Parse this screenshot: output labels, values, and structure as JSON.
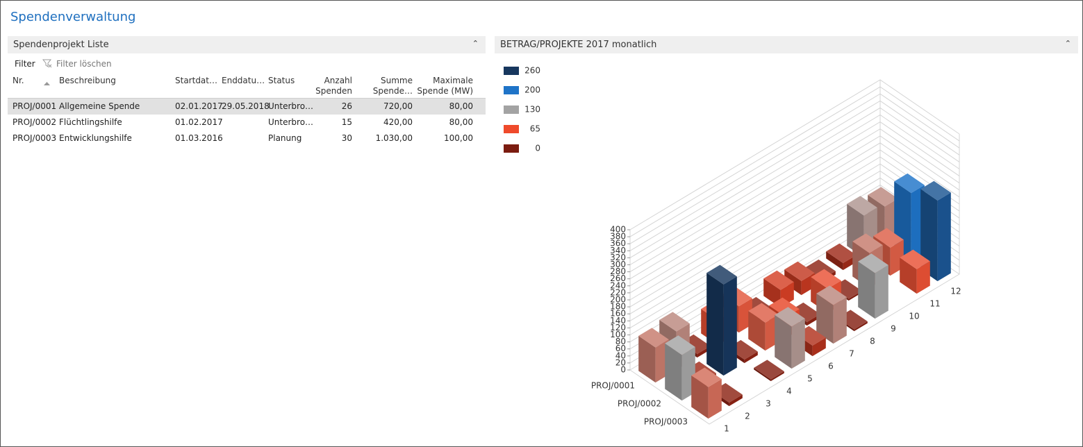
{
  "header": {
    "title": "Spendenverwaltung"
  },
  "list_panel": {
    "title": "Spendenprojekt Liste",
    "filter": "Filter",
    "clear_filter": "Filter löschen",
    "table": {
      "columns": [
        [
          "Nr."
        ],
        [
          "Beschreibung"
        ],
        [
          "Startdat…"
        ],
        [
          "Enddatu…"
        ],
        [
          "Status"
        ],
        [
          "Anzahl",
          "Spenden"
        ],
        [
          "Summe",
          "Spende…"
        ],
        [
          "Maximale",
          "Spende (MW)"
        ]
      ],
      "rows": [
        [
          "PROJ/0001",
          "Allgemeine Spende",
          "02.01.2017",
          "29.05.2018",
          "Unterbro…",
          "26",
          "720,00",
          "80,00"
        ],
        [
          "PROJ/0002",
          "Flüchtlingshilfe",
          "01.02.2017",
          "",
          "Unterbro…",
          "15",
          "420,00",
          "80,00"
        ],
        [
          "PROJ/0003",
          "Entwicklungshilfe",
          "01.03.2016",
          "",
          "Planung",
          "30",
          "1.030,00",
          "100,00"
        ]
      ]
    }
  },
  "chart_data": {
    "type": "bar3d",
    "title": "BETRAG/PROJEKTE 2017 monatlich",
    "legend": [
      {
        "value": 260,
        "color": "#17375e"
      },
      {
        "value": 200,
        "color": "#1f74c8"
      },
      {
        "value": 130,
        "color": "#a3a3a3"
      },
      {
        "value": 65,
        "color": "#ef4a2b"
      },
      {
        "value": 0,
        "color": "#7b1c10"
      }
    ],
    "categories": [
      "1",
      "2",
      "3",
      "4",
      "5",
      "6",
      "7",
      "8",
      "9",
      "10",
      "11",
      "12"
    ],
    "series": [
      {
        "name": "PROJ/0001",
        "values": [
          100,
          110,
          10,
          70,
          75,
          10,
          50,
          40,
          10,
          20,
          120,
          110
        ]
      },
      {
        "name": "PROJ/0002",
        "values": [
          130,
          20,
          260,
          10,
          80,
          60,
          10,
          70,
          5,
          100,
          80,
          200
        ]
      },
      {
        "name": "PROJ/0003",
        "values": [
          90,
          10,
          null,
          5,
          120,
          30,
          110,
          5,
          130,
          null,
          70,
          230
        ]
      }
    ],
    "zlim": [
      0,
      400
    ],
    "zticks": [
      0,
      20,
      40,
      60,
      80,
      100,
      120,
      140,
      160,
      180,
      200,
      220,
      240,
      260,
      280,
      300,
      320,
      340,
      360,
      380,
      400
    ],
    "grid": true
  }
}
